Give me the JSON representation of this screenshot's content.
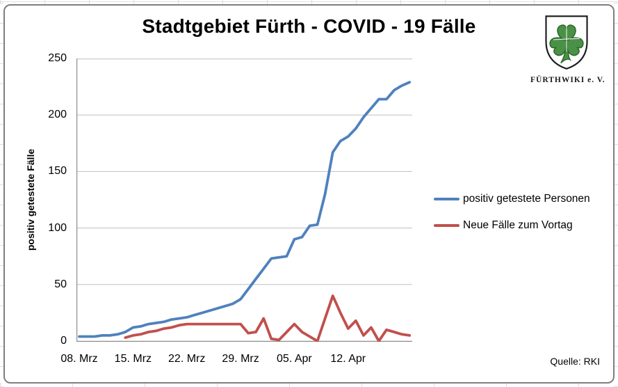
{
  "title": "Stadtgebiet Fürth - COVID - 19 Fälle",
  "logo": {
    "org": "FÜRTHWIKI e. V."
  },
  "source": "Quelle: RKI",
  "chart_data": {
    "type": "line",
    "title": "Stadtgebiet Fürth - COVID - 19 Fälle",
    "xlabel": "",
    "ylabel": "positiv getestete Fälle",
    "ylim": [
      0,
      250
    ],
    "yticks": [
      0,
      50,
      100,
      150,
      200,
      250
    ],
    "grid": "horizontal",
    "legend_position": "right-middle",
    "x_unit": "daily values; day 0 = 08. Mrz",
    "xticks": [
      {
        "label": "08. Mrz",
        "day": 0
      },
      {
        "label": "15. Mrz",
        "day": 7
      },
      {
        "label": "22. Mrz",
        "day": 14
      },
      {
        "label": "29. Mrz",
        "day": 21
      },
      {
        "label": "05. Apr",
        "day": 28
      },
      {
        "label": "12. Apr",
        "day": 35
      }
    ],
    "series": [
      {
        "name": "positiv getestete Personen",
        "color": "#4F81BD",
        "start_day": 0,
        "values": [
          4,
          4,
          4,
          5,
          5,
          6,
          8,
          12,
          13,
          15,
          16,
          17,
          19,
          20,
          21,
          23,
          25,
          27,
          29,
          31,
          33,
          37,
          46,
          55,
          64,
          73,
          74,
          75,
          90,
          92,
          102,
          103,
          130,
          167,
          177,
          181,
          188,
          198,
          206,
          214,
          214,
          222,
          226,
          229
        ]
      },
      {
        "name": "Neue Fälle zum Vortag",
        "color": "#C0504D",
        "start_day": 6,
        "values": [
          3,
          5,
          6,
          8,
          9,
          11,
          12,
          14,
          15,
          15,
          15,
          15,
          15,
          15,
          15,
          15,
          7,
          8,
          20,
          2,
          1,
          8,
          15,
          8,
          4,
          0,
          20,
          40,
          25,
          11,
          18,
          5,
          12,
          0,
          10,
          8,
          6,
          5
        ]
      }
    ]
  }
}
